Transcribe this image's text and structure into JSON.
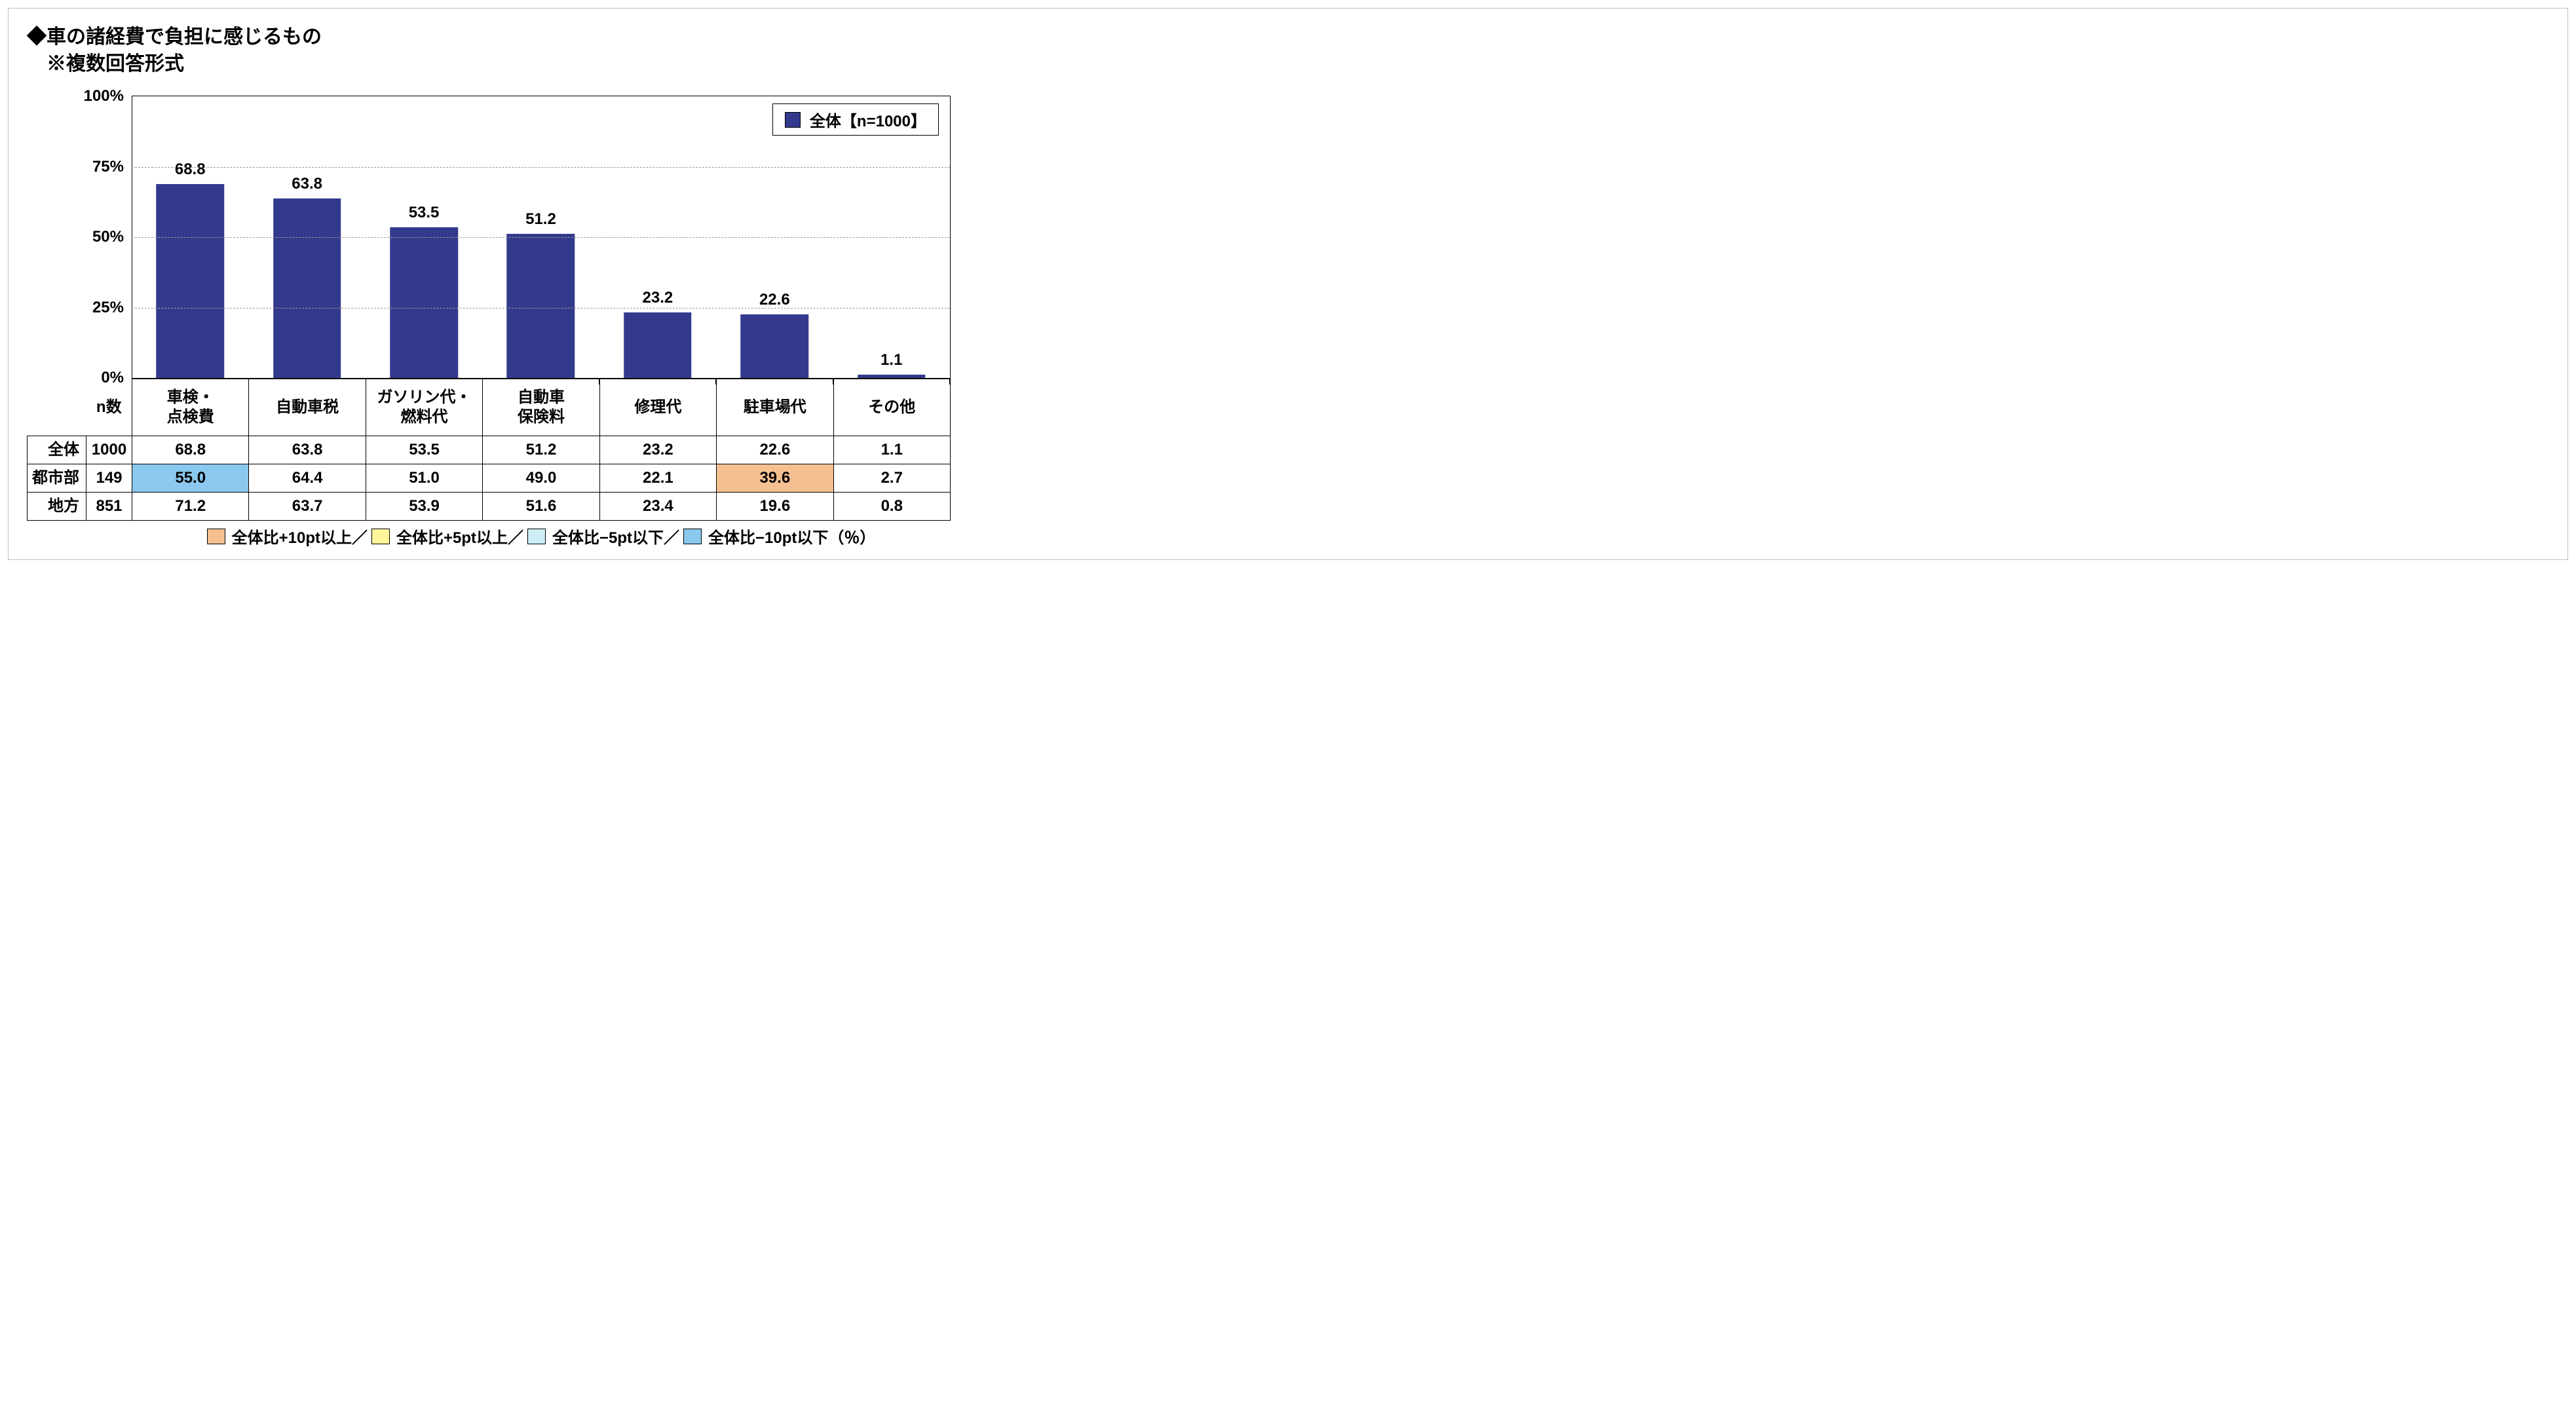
{
  "title": {
    "line1": "◆車の諸経費で負担に感じるもの",
    "line2": "　※複数回答形式"
  },
  "chart": {
    "type": "bar",
    "legend_label": "全体【n=1000】",
    "bar_color": "#333a8d",
    "background_color": "#ffffff",
    "grid_color": "#9a9a9a",
    "ylim": [
      0,
      100
    ],
    "ytick_step": 25,
    "ytick_labels": [
      "0%",
      "25%",
      "50%",
      "75%",
      "100%"
    ],
    "categories": [
      "車検・\n点検費",
      "自動車税",
      "ガソリン代・\n燃料代",
      "自動車\n保険料",
      "修理代",
      "駐車場代",
      "その他"
    ],
    "values": [
      68.8,
      63.8,
      53.5,
      51.2,
      23.2,
      22.6,
      1.1
    ],
    "value_label_fontsize": 24,
    "bar_width": 0.58
  },
  "table": {
    "n_header": "n数",
    "rows": [
      {
        "label": "全体",
        "n": "1000",
        "cells": [
          "68.8",
          "63.8",
          "53.5",
          "51.2",
          "23.2",
          "22.6",
          "1.1"
        ],
        "hl": [
          null,
          null,
          null,
          null,
          null,
          null,
          null
        ]
      },
      {
        "label": "都市部",
        "n": "149",
        "cells": [
          "55.0",
          "64.4",
          "51.0",
          "49.0",
          "22.1",
          "39.6",
          "2.7"
        ],
        "hl": [
          "blue",
          null,
          null,
          null,
          null,
          "orange",
          null
        ]
      },
      {
        "label": "地方",
        "n": "851",
        "cells": [
          "71.2",
          "63.7",
          "53.9",
          "51.6",
          "23.4",
          "19.6",
          "0.8"
        ],
        "hl": [
          null,
          null,
          null,
          null,
          null,
          null,
          null
        ]
      }
    ]
  },
  "footer_legend": {
    "items": [
      {
        "color": "#f4c091",
        "label": "全体比+10pt以上／"
      },
      {
        "color": "#fff79a",
        "label": "全体比+5pt以上／"
      },
      {
        "color": "#cdeef4",
        "label": "全体比−5pt以下／"
      },
      {
        "color": "#8ac8ee",
        "label": "全体比−10pt以下（％）"
      }
    ]
  },
  "colors": {
    "hl_blue": "#8ac8ee",
    "hl_orange": "#f4c091",
    "hl_yellow": "#fff79a",
    "hl_ltblue": "#cdeef4"
  }
}
